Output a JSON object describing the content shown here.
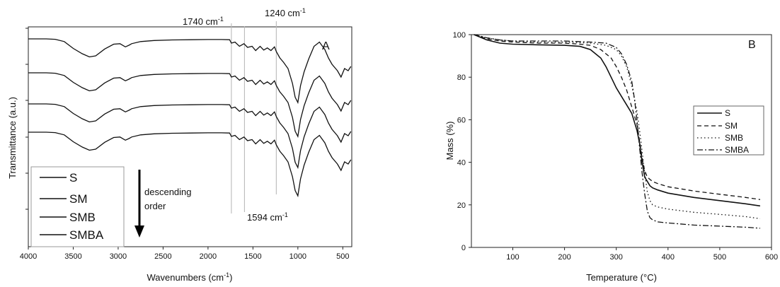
{
  "chart_data": [
    {
      "type": "line",
      "panel_label": "A",
      "xlabel": "Wavenumbers (cm-1)",
      "ylabel": "Transmittance (a.u.)",
      "xlim": [
        4000,
        400
      ],
      "x_reversed": true,
      "x_ticks": [
        "4000",
        "3500",
        "3000",
        "2500",
        "2000",
        "1500",
        "1000",
        "500"
      ],
      "grid": false,
      "legend_position": "bottom-left",
      "vertical_reference_lines": [
        1740,
        1594,
        1240
      ],
      "annotations": [
        {
          "text": "1740 cm",
          "sup": "-1",
          "at": 1740
        },
        {
          "text": "1240 cm",
          "sup": "-1",
          "at": 1240
        },
        {
          "text": "1594 cm",
          "sup": "-1",
          "at": 1594
        }
      ],
      "order_note": {
        "line1": "descending",
        "line2": "order"
      },
      "series": [
        {
          "name": "S",
          "style": "solid"
        },
        {
          "name": "SM",
          "style": "solid"
        },
        {
          "name": "SMB",
          "style": "solid"
        },
        {
          "name": "SMBA",
          "style": "solid"
        }
      ],
      "x": [
        4000,
        3800,
        3700,
        3600,
        3500,
        3400,
        3320,
        3250,
        3150,
        3050,
        2980,
        2920,
        2880,
        2850,
        2750,
        2600,
        2400,
        2200,
        2000,
        1850,
        1760,
        1740,
        1700,
        1650,
        1600,
        1560,
        1510,
        1470,
        1420,
        1380,
        1340,
        1300,
        1260,
        1240,
        1200,
        1160,
        1110,
        1060,
        1030,
        1000,
        970,
        930,
        880,
        820,
        760,
        700,
        660,
        620,
        560,
        520,
        480,
        440,
        410
      ],
      "spectrum_shape": [
        0.0,
        0.0,
        0.4,
        2.5,
        9.0,
        14.0,
        17.0,
        16.0,
        9.5,
        5.0,
        4.5,
        7.5,
        6.0,
        4.5,
        2.5,
        1.5,
        1.0,
        0.8,
        0.6,
        0.6,
        0.8,
        4.0,
        3.0,
        7.0,
        4.5,
        8.0,
        7.0,
        11.0,
        7.0,
        10.5,
        8.5,
        11.0,
        7.5,
        12.0,
        18.0,
        22.0,
        28.0,
        42.0,
        55.0,
        60.0,
        44.0,
        31.0,
        19.0,
        7.0,
        3.0,
        10.0,
        18.0,
        24.0,
        30.0,
        36.0,
        28.0,
        30.0,
        26.0
      ],
      "series_offsets": [
        0,
        1,
        2,
        3
      ]
    },
    {
      "type": "line",
      "panel_label": "B",
      "xlabel": "Temperature (°C)",
      "ylabel": "Mass (%)",
      "xlim": [
        20,
        600
      ],
      "ylim": [
        0,
        100
      ],
      "x_ticks": [
        100,
        200,
        300,
        400,
        500,
        600
      ],
      "y_ticks": [
        0,
        20,
        40,
        60,
        80,
        100
      ],
      "grid": false,
      "legend_position": "right",
      "series": [
        {
          "name": "S",
          "style": "solid",
          "x": [
            25,
            50,
            75,
            100,
            150,
            200,
            230,
            250,
            270,
            280,
            290,
            300,
            310,
            320,
            330,
            340,
            345,
            350,
            355,
            360,
            365,
            370,
            380,
            400,
            450,
            500,
            550,
            578
          ],
          "y": [
            100,
            97.5,
            96,
            95.5,
            95.2,
            95,
            94.5,
            93,
            89,
            85,
            80,
            75,
            71,
            67,
            63,
            55,
            49,
            40,
            33,
            31,
            29,
            28,
            27,
            25.5,
            23.5,
            22,
            20.5,
            19.5
          ]
        },
        {
          "name": "SM",
          "style": "dashed",
          "x": [
            25,
            50,
            75,
            100,
            150,
            200,
            230,
            250,
            270,
            290,
            300,
            310,
            320,
            330,
            340,
            345,
            350,
            355,
            360,
            365,
            370,
            380,
            400,
            450,
            500,
            550,
            578
          ],
          "y": [
            100,
            98,
            97,
            96.5,
            96,
            96,
            95.5,
            95,
            93,
            89,
            85,
            80,
            74,
            66,
            58,
            50,
            42,
            36,
            33,
            32,
            31,
            30,
            28.5,
            26.5,
            25,
            23.5,
            22.5
          ]
        },
        {
          "name": "SMB",
          "style": "dotted",
          "x": [
            25,
            50,
            75,
            100,
            150,
            200,
            250,
            280,
            300,
            310,
            320,
            330,
            340,
            345,
            350,
            355,
            360,
            365,
            370,
            380,
            400,
            450,
            500,
            550,
            578
          ],
          "y": [
            100,
            98.5,
            97.5,
            97,
            96.5,
            96.5,
            96,
            95,
            93,
            90,
            85,
            76,
            64,
            55,
            45,
            35,
            26,
            22,
            20,
            19,
            18,
            16.5,
            15.5,
            14.5,
            13.5
          ]
        },
        {
          "name": "SMBA",
          "style": "dashdot",
          "x": [
            25,
            50,
            75,
            100,
            150,
            200,
            250,
            280,
            300,
            310,
            320,
            330,
            335,
            340,
            345,
            350,
            355,
            360,
            365,
            370,
            380,
            400,
            450,
            500,
            550,
            578
          ],
          "y": [
            100,
            98.5,
            97.5,
            97,
            97,
            97,
            96.5,
            96,
            94,
            91,
            86,
            78,
            70,
            60,
            47,
            35,
            25,
            17,
            14,
            13,
            12,
            11.5,
            10.5,
            10,
            9.5,
            9
          ]
        }
      ]
    }
  ]
}
